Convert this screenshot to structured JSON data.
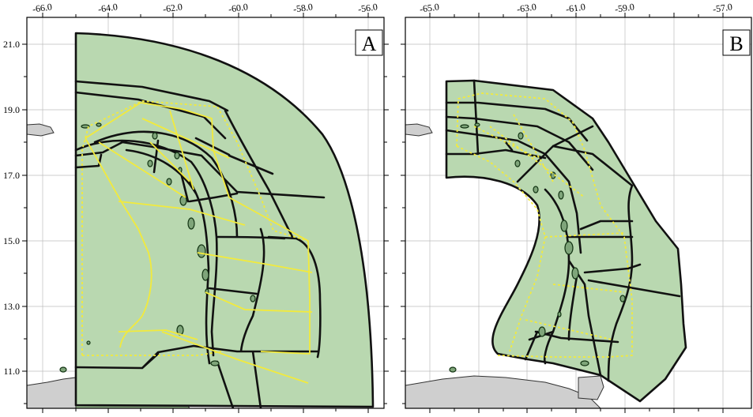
{
  "panels": [
    {
      "letter": "A",
      "x_ticks": [
        "-66.0",
        "-64.0",
        "-62.0",
        "-60.0",
        "-58.0",
        "-56.0"
      ],
      "y_ticks": [
        "21.0",
        "19.0",
        "17.0",
        "15.0",
        "13.0",
        "11.0"
      ]
    },
    {
      "letter": "B",
      "x_ticks": [
        "-65.0",
        "-63.0",
        "-61.0",
        "-59.0",
        "-57.0"
      ]
    }
  ],
  "colors": {
    "zone_fill": "#b9d8b0",
    "zone_border": "#111111",
    "yellow_boundary": "#f2ea3c",
    "land_outside": "#cfcfcf",
    "island_fill": "#7fa57a"
  }
}
